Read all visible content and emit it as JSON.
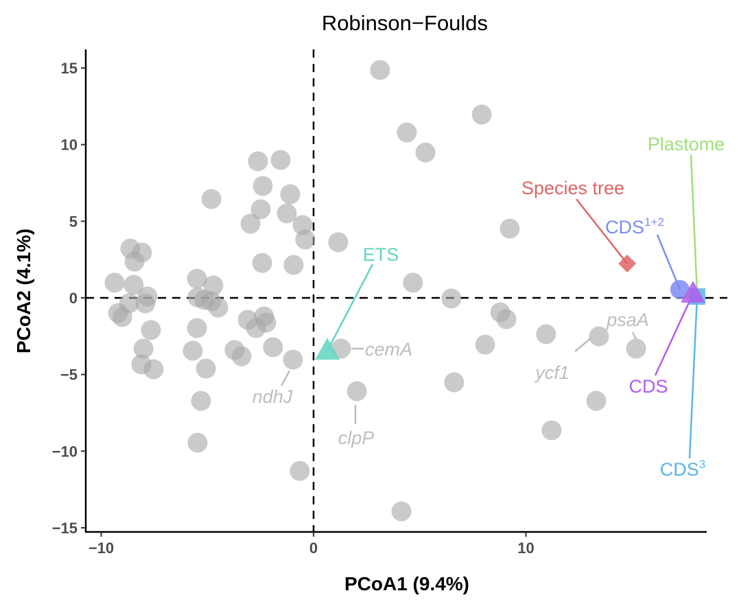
{
  "chart_data": {
    "type": "scatter",
    "title": "Robinson−Foulds",
    "xlabel": "PCoA1 (9.4%)",
    "ylabel": "PCoA2 (4.1%)",
    "xlim": [
      -10.7,
      18.5
    ],
    "ylim": [
      -15.3,
      16.3
    ],
    "xticks": [
      -10,
      0,
      10
    ],
    "xtick_labels": [
      "−10",
      "0",
      "10"
    ],
    "yticks": [
      -15,
      -10,
      -5,
      0,
      5,
      10,
      15
    ],
    "ytick_labels": [
      "−15",
      "−10",
      "−5",
      "0",
      "5",
      "10",
      "15"
    ],
    "grid": false,
    "reference_lines": {
      "x": 0,
      "y": 0,
      "style": "dashed"
    },
    "gene_points": {
      "color": "#a6a6a6",
      "x": [
        3.13,
        7.92,
        4.39,
        5.27,
        -2.62,
        -1.55,
        -2.39,
        -1.1,
        -4.81,
        -2.49,
        -1.26,
        -2.97,
        -0.52,
        -0.39,
        1.16,
        9.24,
        -2.42,
        -0.94,
        -8.63,
        -8.08,
        -8.43,
        -9.37,
        -8.47,
        -7.82,
        -7.92,
        -8.69,
        -9.21,
        -9.01,
        -7.66,
        -8.01,
        -8.11,
        -7.53,
        -5.49,
        -4.72,
        -5.46,
        -5.14,
        -4.81,
        -4.49,
        -5.49,
        -5.69,
        -5.07,
        -5.3,
        -5.46,
        -3.1,
        -2.33,
        -2.23,
        -2.71,
        -3.72,
        -3.39,
        -1.91,
        -0.97,
        -0.65,
        1.29,
        2.04,
        4.68,
        6.49,
        6.62,
        8.08,
        8.79,
        9.08,
        10.95,
        13.44,
        15.19,
        13.31,
        11.21,
        4.14
      ],
      "y": [
        14.87,
        11.96,
        10.79,
        9.49,
        8.91,
        9.0,
        7.3,
        6.76,
        6.45,
        5.78,
        5.51,
        4.84,
        4.75,
        3.81,
        3.63,
        4.52,
        2.28,
        2.15,
        3.22,
        2.96,
        2.37,
        0.99,
        0.85,
        0.09,
        -0.36,
        -0.36,
        -0.99,
        -1.25,
        -2.1,
        -3.31,
        -4.34,
        -4.66,
        1.25,
        0.81,
        0.04,
        -0.13,
        -0.22,
        -0.63,
        -1.97,
        -3.45,
        -4.61,
        -6.72,
        -9.45,
        -1.43,
        -1.21,
        -1.61,
        -1.97,
        -3.4,
        -3.81,
        -3.22,
        -4.03,
        -11.29,
        -3.31,
        -6.09,
        0.99,
        -0.04,
        -5.51,
        -3.05,
        -0.94,
        -1.39,
        -2.37,
        -2.51,
        -3.31,
        -6.72,
        -8.64,
        -13.93
      ]
    },
    "gene_labels": [
      {
        "text": "cemA",
        "point_index": 52
      },
      {
        "text": "ndhJ",
        "point_index": 50
      },
      {
        "text": "clpP",
        "point_index": 53
      },
      {
        "text": "ycf1",
        "point_index": 61
      },
      {
        "text": "psaA",
        "point_index": 62
      }
    ],
    "highlighted": [
      {
        "name": "Species tree",
        "shape": "diamond",
        "color": "#e06464",
        "x": 14.77,
        "y": 2.24
      },
      {
        "name": "ETS",
        "shape": "triangle",
        "color": "#5fd6c0",
        "x": 0.65,
        "y": -3.45
      },
      {
        "name": "CDS",
        "sup": "1+2",
        "shape": "circle",
        "color": "#7b8cf2",
        "x": 17.25,
        "y": 0.54
      },
      {
        "name": "Plastome",
        "shape": "circle",
        "color": "#9ee07a",
        "x": 17.93,
        "y": 0.15
      },
      {
        "name": "CDS",
        "sup": "3",
        "shape": "square",
        "color": "#5ab4ea",
        "x": 18.06,
        "y": 0.09
      },
      {
        "name": "CDS",
        "shape": "triangle",
        "color": "#b45cf0",
        "x": 17.87,
        "y": 0.27
      }
    ]
  }
}
